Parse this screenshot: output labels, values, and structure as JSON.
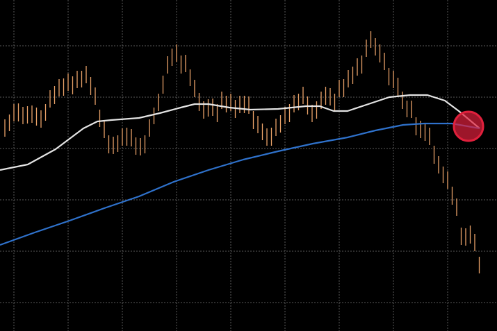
{
  "chart_data": {
    "type": "combo",
    "xlim": [
      0,
      715
    ],
    "ylim": [
      0,
      477
    ],
    "xticks": [
      20,
      98,
      176,
      254,
      332,
      410,
      488,
      566,
      644
    ],
    "yticks": [
      41,
      115,
      189,
      263,
      337,
      411
    ],
    "grid": true,
    "series": [
      {
        "type": "range-bar",
        "color": "#e9a268",
        "x": [
          7,
          13.5,
          20,
          26.5,
          33,
          39.5,
          46,
          52.5,
          59,
          65.5,
          72,
          78.5,
          85,
          91.5,
          98,
          104.5,
          111,
          117.5,
          124,
          130.5,
          137,
          143.5,
          150,
          156.5,
          163,
          169.5,
          176,
          182.5,
          189,
          195.5,
          202,
          208.5,
          215,
          221.5,
          228,
          234.5,
          241,
          247.5,
          254,
          260.5,
          267,
          273.5,
          280,
          286.5,
          293,
          299.5,
          306,
          312.5,
          319,
          325.5,
          332,
          338.5,
          345,
          351.5,
          358,
          364.5,
          371,
          377.5,
          384,
          390.5,
          397,
          403.5,
          410,
          416.5,
          423,
          429.5,
          436,
          442.5,
          449,
          455.5,
          462,
          468.5,
          475,
          481.5,
          488,
          494.5,
          501,
          507.5,
          514,
          520.5,
          527,
          533.5,
          540,
          546.5,
          553,
          559.5,
          566,
          572.5,
          579,
          585.5,
          592,
          598.5,
          605,
          611.5,
          618,
          624.5,
          631,
          637.5,
          644,
          650.5,
          657,
          663.5,
          670,
          676.5,
          683,
          689.5
        ],
        "high": [
          305,
          312,
          327,
          328,
          323,
          324,
          325,
          322,
          318,
          327,
          347,
          353,
          363,
          364,
          371,
          367,
          375,
          375,
          382,
          366,
          351,
          319,
          303,
          282,
          280,
          282,
          292,
          293,
          291,
          279,
          278,
          282,
          305,
          322,
          342,
          368,
          396,
          407,
          413,
          397,
          398,
          377,
          362,
          343,
          331,
          334,
          335,
          327,
          345,
          339,
          342,
          333,
          339,
          339,
          338,
          317,
          310,
          299,
          292,
          293,
          306,
          311,
          323,
          327,
          340,
          342,
          352,
          338,
          326,
          331,
          345,
          352,
          350,
          342,
          362,
          363,
          376,
          381,
          393,
          397,
          420,
          432,
          422,
          413,
          401,
          379,
          375,
          365,
          345,
          332,
          332,
          308,
          303,
          299,
          293,
          267,
          252,
          237,
          230,
          208,
          191,
          149,
          148,
          152,
          140,
          107
        ],
        "low": [
          280,
          288,
          302,
          302,
          298,
          299,
          300,
          296,
          293,
          303,
          322,
          327,
          338,
          339,
          346,
          341,
          350,
          351,
          357,
          340,
          326,
          294,
          278,
          256,
          255,
          258,
          267,
          267,
          266,
          254,
          253,
          256,
          280,
          298,
          317,
          342,
          371,
          382,
          388,
          371,
          373,
          353,
          337,
          317,
          306,
          309,
          310,
          301,
          320,
          315,
          317,
          307,
          314,
          314,
          313,
          291,
          285,
          275,
          267,
          267,
          281,
          286,
          298,
          301,
          315,
          318,
          327,
          312,
          301,
          306,
          320,
          326,
          325,
          318,
          337,
          337,
          351,
          356,
          368,
          371,
          395,
          408,
          397,
          387,
          376,
          354,
          350,
          339,
          320,
          308,
          307,
          282,
          278,
          274,
          268,
          241,
          227,
          213,
          205,
          182,
          166,
          124,
          123,
          126,
          115,
          83
        ]
      },
      {
        "type": "line",
        "color": "#e4e4e4",
        "x": [
          0,
          40,
          80,
          120,
          140,
          160,
          200,
          230,
          260,
          280,
          300,
          330,
          360,
          400,
          440,
          460,
          480,
          500,
          530,
          560,
          590,
          615,
          640,
          660,
          690
        ],
        "values": [
          232,
          240,
          262,
          292,
          302,
          304,
          307,
          314,
          322,
          327,
          327,
          322,
          319,
          320,
          324,
          324,
          317,
          317,
          327,
          337,
          340,
          340,
          332,
          317,
          292
        ]
      },
      {
        "type": "line",
        "color": "#2f72cc",
        "x": [
          0,
          50,
          100,
          150,
          200,
          250,
          300,
          350,
          400,
          450,
          500,
          540,
          580,
          610,
          650,
          690
        ],
        "values": [
          124,
          142,
          159,
          177,
          194,
          215,
          232,
          247,
          259,
          270,
          279,
          289,
          297,
          299,
          299,
          292
        ]
      }
    ],
    "annotations": [
      {
        "shape": "circle",
        "x": 674,
        "y": 295,
        "color": "#e0203c"
      }
    ]
  }
}
